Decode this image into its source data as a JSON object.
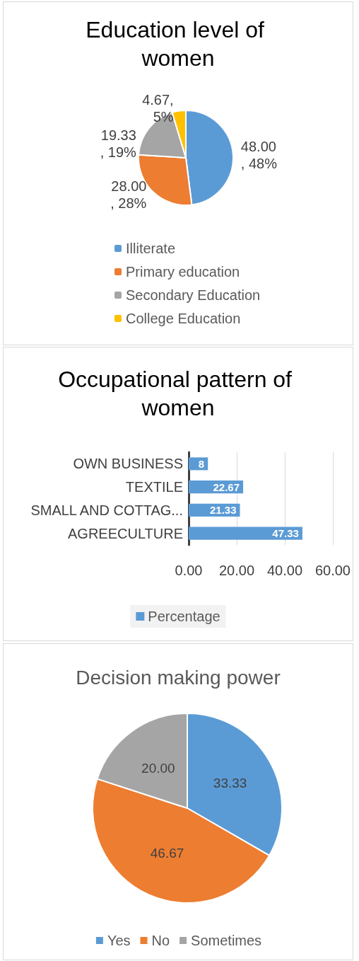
{
  "chart_data": [
    {
      "type": "pie",
      "title": "Education level of women",
      "categories": [
        "Illiterate",
        "Primary education",
        "Secondary Education",
        "College Education"
      ],
      "values": [
        48.0,
        28.0,
        19.33,
        4.67
      ],
      "colors": [
        "#5b9bd5",
        "#ed7d31",
        "#a5a5a5",
        "#ffc000"
      ],
      "value_labels": [
        "48.00, 48%",
        "28.00, 28%",
        "19.33, 19%",
        "4.67, 5%"
      ],
      "legend": "bottom"
    },
    {
      "type": "bar",
      "orientation": "horizontal",
      "title": "Occupational pattern of women",
      "categories": [
        "OWN BUSINESS",
        "TEXTILE",
        "SMALL AND COTTAG...",
        "AGREECULTURE"
      ],
      "series": [
        {
          "name": "Percentage",
          "color": "#5b9bd5",
          "values": [
            8,
            22.67,
            21.33,
            47.33
          ]
        }
      ],
      "xlim": [
        0,
        60
      ],
      "xticks": [
        {
          "value": 0,
          "label": "0.00"
        },
        {
          "value": 20,
          "label": "20.00"
        },
        {
          "value": 40,
          "label": "40.00"
        },
        {
          "value": 60,
          "label": "60.00"
        }
      ],
      "grid": "x",
      "data_labels": true,
      "legend": "bottom"
    },
    {
      "type": "pie",
      "title": "Decision making power",
      "categories": [
        "Yes",
        "No",
        "Sometimes"
      ],
      "values": [
        33.33,
        46.67,
        20.0
      ],
      "colors": [
        "#5b9bd5",
        "#ed7d31",
        "#a5a5a5"
      ],
      "value_labels": [
        "33.33",
        "46.67",
        "20.00"
      ],
      "legend": "bottom"
    }
  ]
}
